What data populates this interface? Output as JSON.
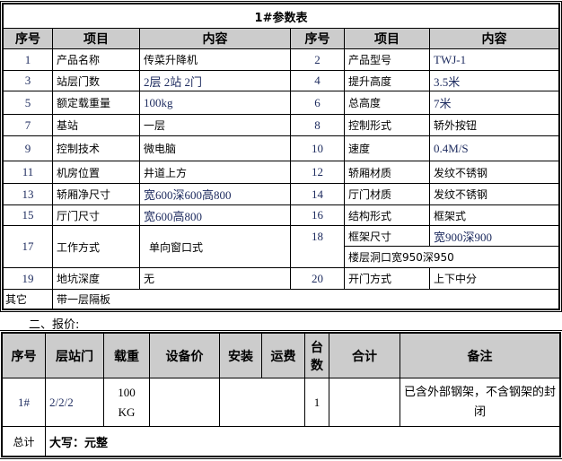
{
  "param_table": {
    "title": "1#参数表",
    "headers": [
      "序号",
      "项目",
      "内容",
      "序号",
      "项目",
      "内容"
    ],
    "rows": [
      {
        "no1": "1",
        "item1": "产品名称",
        "val1": "传菜升降机",
        "no2": "2",
        "item2": "产品型号",
        "val2": "TWJ-1"
      },
      {
        "no1": "3",
        "item1": "站层门数",
        "val1": "2层 2站 2门",
        "no2": "4",
        "item2": "提升高度",
        "val2": "3.5米"
      },
      {
        "no1": "5",
        "item1": "额定载重量",
        "val1": "100kg",
        "no2": "6",
        "item2": "总高度",
        "val2": "7米"
      },
      {
        "no1": "7",
        "item1": "基站",
        "val1": "一层",
        "no2": "8",
        "item2": "控制形式",
        "val2": "轿外按钮"
      },
      {
        "no1": "9",
        "item1": "控制技术",
        "val1": "微电脑",
        "no2": "10",
        "item2": "速度",
        "val2": "0.4M/S"
      },
      {
        "no1": "11",
        "item1": "机房位置",
        "val1": "井道上方",
        "no2": "12",
        "item2": "轿厢材质",
        "val2": "发纹不锈钢"
      },
      {
        "no1": "13",
        "item1": "轿厢净尺寸",
        "val1": "宽600深600高800",
        "no2": "14",
        "item2": "厅门材质",
        "val2": "发纹不锈钢"
      },
      {
        "no1": "15",
        "item1": "厅门尺寸",
        "val1": "宽600高800",
        "no2": "16",
        "item2": "结构形式",
        "val2": "框架式"
      },
      {
        "no1": "17",
        "item1": "工作方式",
        "val1": "单向窗口式",
        "no2": "18",
        "item2": "框架尺寸",
        "val2": "宽900深900",
        "extra": "楼层洞口宽950深950"
      },
      {
        "no1": "19",
        "item1": "地坑深度",
        "val1": "无",
        "no2": "20",
        "item2": "开门方式",
        "val2": "上下中分"
      }
    ],
    "other_label": "其它",
    "other_value": "带一层隔板"
  },
  "section_title": "二、报价:",
  "quote_table": {
    "headers": [
      "序号",
      "层站门",
      "载重",
      "设备价",
      "安装",
      "运费",
      "台数",
      "合计",
      "备注"
    ],
    "row": {
      "no": "1#",
      "floors": "2/2/2",
      "load": "100 KG",
      "equipment_price": "",
      "install_shipping": "",
      "qty": "1",
      "total": "",
      "note": "已含外部钢架，不含钢架的封闭"
    },
    "total_label": "总计",
    "total_value": "大写：元整"
  }
}
